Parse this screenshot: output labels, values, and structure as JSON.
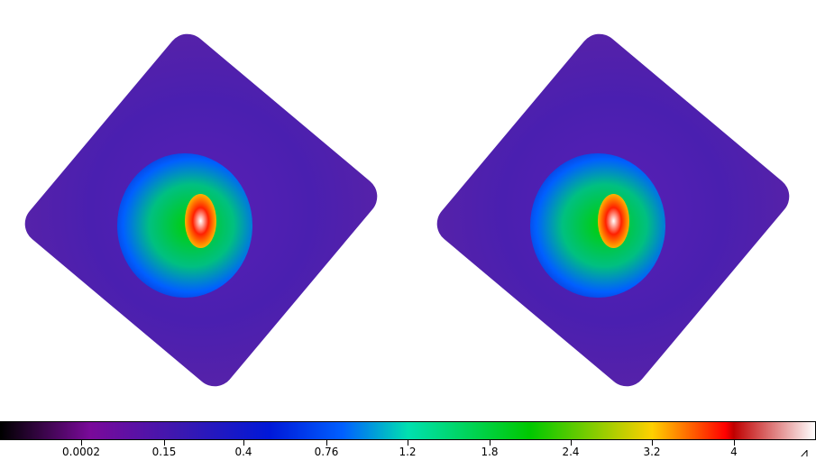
{
  "colormap": "rainbow",
  "panels": [
    {
      "name": "left-image"
    },
    {
      "name": "right-image"
    }
  ],
  "colorbar": {
    "ticks": [
      "0.0002",
      "0.15",
      "0.4",
      "0.76",
      "1.2",
      "1.8",
      "2.4",
      "3.2",
      "4"
    ]
  },
  "colors": {
    "background": "#5a1fb5",
    "peak": "#ffffff"
  }
}
